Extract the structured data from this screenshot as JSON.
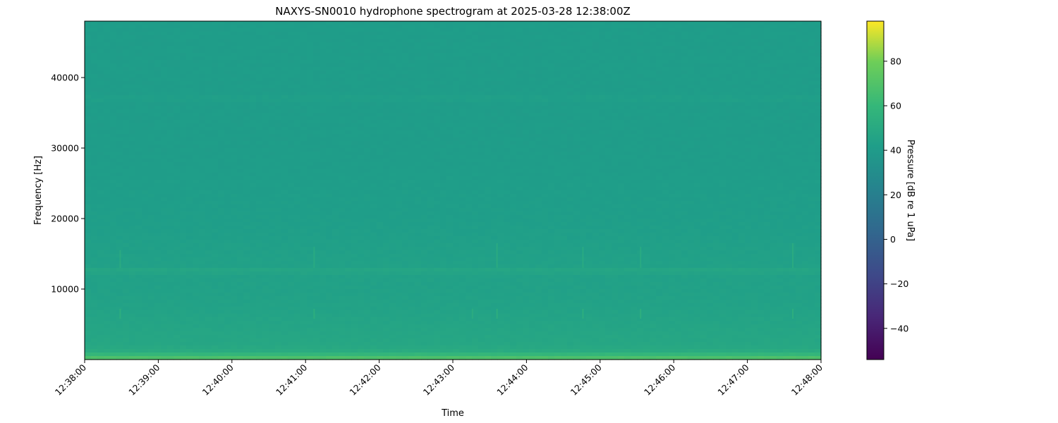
{
  "chart_data": {
    "type": "heatmap",
    "title": "NAXYS-SN0010 hydrophone spectrogram at 2025-03-28 12:38:00Z",
    "xlabel": "Time",
    "ylabel": "Frequency [Hz]",
    "xlim": [
      "12:38:00",
      "12:48:00"
    ],
    "ylim": [
      0,
      48000
    ],
    "x_ticks": [
      "12:38:00",
      "12:39:00",
      "12:40:00",
      "12:41:00",
      "12:42:00",
      "12:43:00",
      "12:44:00",
      "12:45:00",
      "12:46:00",
      "12:47:00",
      "12:48:00"
    ],
    "y_ticks": [
      10000,
      20000,
      30000,
      40000
    ],
    "colormap": "viridis",
    "colorbar": {
      "label": "Pressure [dB re 1 uPa]",
      "range": [
        -54,
        98
      ],
      "ticks": [
        -40,
        -20,
        0,
        20,
        40,
        60,
        80
      ]
    },
    "frequency_profile": {
      "frequency_hz": [
        0,
        500,
        1000,
        2000,
        4000,
        7000,
        10000,
        12000,
        12600,
        13200,
        20000,
        30000,
        36500,
        37000,
        37600,
        48000
      ],
      "level_db": [
        70,
        66,
        52,
        48,
        47,
        45,
        44,
        44,
        48,
        44,
        42,
        41,
        41,
        43.5,
        41,
        41
      ]
    },
    "transients": [
      {
        "time": "12:38:29",
        "freq_hz": [
          5800,
          7200
        ],
        "level_db": 55
      },
      {
        "time": "12:38:29",
        "freq_hz": [
          13000,
          15500
        ],
        "level_db": 52
      },
      {
        "time": "12:41:07",
        "freq_hz": [
          5800,
          7200
        ],
        "level_db": 55
      },
      {
        "time": "12:41:07",
        "freq_hz": [
          13000,
          16000
        ],
        "level_db": 51
      },
      {
        "time": "12:43:16",
        "freq_hz": [
          5800,
          7200
        ],
        "level_db": 53
      },
      {
        "time": "12:43:36",
        "freq_hz": [
          5800,
          7200
        ],
        "level_db": 55
      },
      {
        "time": "12:43:36",
        "freq_hz": [
          13000,
          16500
        ],
        "level_db": 52
      },
      {
        "time": "12:44:46",
        "freq_hz": [
          5800,
          7200
        ],
        "level_db": 55
      },
      {
        "time": "12:44:46",
        "freq_hz": [
          13000,
          16000
        ],
        "level_db": 51
      },
      {
        "time": "12:45:33",
        "freq_hz": [
          5800,
          7200
        ],
        "level_db": 56
      },
      {
        "time": "12:45:33",
        "freq_hz": [
          13000,
          16000
        ],
        "level_db": 51
      },
      {
        "time": "12:47:37",
        "freq_hz": [
          5800,
          7200
        ],
        "level_db": 55
      },
      {
        "time": "12:47:37",
        "freq_hz": [
          13000,
          16500
        ],
        "level_db": 52
      }
    ]
  }
}
